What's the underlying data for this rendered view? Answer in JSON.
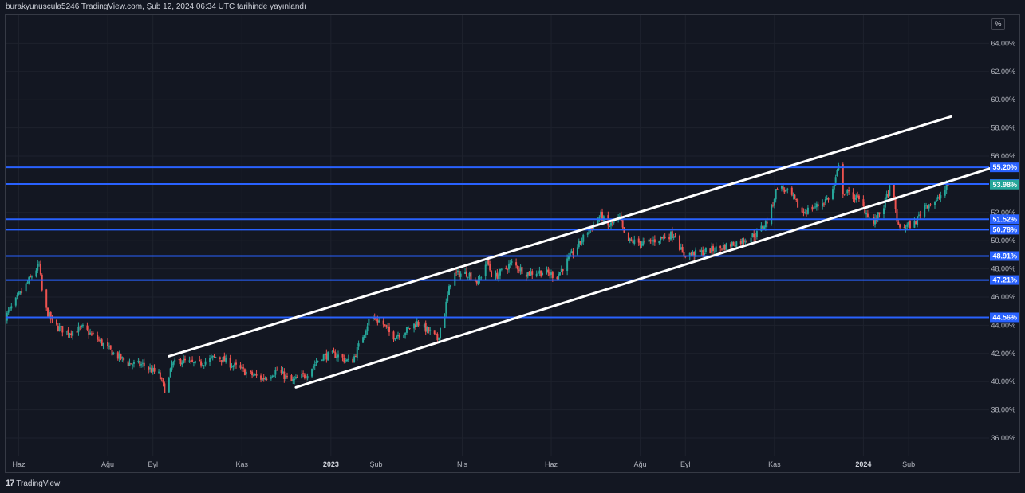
{
  "header": {
    "text": "burakyunuscula5246 TradingView.com, Şub 12, 2024 06:34 UTC tarihinde yayınlandı"
  },
  "footer": {
    "logo": "17",
    "brand": "TradingView"
  },
  "scale_badge": "%",
  "colors": {
    "background": "#131722",
    "grid": "#1e222d",
    "up": "#26a69a",
    "down": "#ef5350",
    "hline": "#2962ff",
    "hline_label_bg": "#2962ff",
    "current_label_bg": "#26a69a",
    "trendline": "#ffffff"
  },
  "chart_data": {
    "type": "candlestick",
    "title": "",
    "xlabel": "",
    "ylabel": "",
    "ylim": [
      34.7,
      66.0
    ],
    "y_unit": "%",
    "y_ticks": [
      "64.00%",
      "62.00%",
      "60.00%",
      "58.00%",
      "56.00%",
      "54.00%",
      "52.00%",
      "50.00%",
      "48.00%",
      "46.00%",
      "44.00%",
      "42.00%",
      "40.00%",
      "38.00%",
      "36.00%"
    ],
    "x_ticks": [
      {
        "label": "Haz",
        "date": "2022-06"
      },
      {
        "label": "Ağu",
        "date": "2022-08"
      },
      {
        "label": "Eyl",
        "date": "2022-09"
      },
      {
        "label": "Kas",
        "date": "2022-11"
      },
      {
        "label": "2023",
        "date": "2023-01",
        "bold": true
      },
      {
        "label": "Şub",
        "date": "2023-02"
      },
      {
        "label": "Nis",
        "date": "2023-04"
      },
      {
        "label": "Haz",
        "date": "2023-06"
      },
      {
        "label": "Ağu",
        "date": "2023-08"
      },
      {
        "label": "Eyl",
        "date": "2023-09"
      },
      {
        "label": "Kas",
        "date": "2023-11"
      },
      {
        "label": "2024",
        "date": "2024-01",
        "bold": true
      },
      {
        "label": "Şub",
        "date": "2024-02"
      }
    ],
    "price_path": [
      [
        "2022-05-23",
        44.6
      ],
      [
        "2022-06-10",
        47.5
      ],
      [
        "2022-06-15",
        48.3
      ],
      [
        "2022-06-18",
        45.5
      ],
      [
        "2022-06-25",
        44.0
      ],
      [
        "2022-07-05",
        43.5
      ],
      [
        "2022-07-15",
        43.8
      ],
      [
        "2022-07-25",
        43.0
      ],
      [
        "2022-08-05",
        42.0
      ],
      [
        "2022-08-15",
        41.3
      ],
      [
        "2022-08-25",
        41.2
      ],
      [
        "2022-09-05",
        40.5
      ],
      [
        "2022-09-10",
        39.2
      ],
      [
        "2022-09-14",
        41.2
      ],
      [
        "2022-09-20",
        41.5
      ],
      [
        "2022-10-01",
        41.2
      ],
      [
        "2022-10-15",
        41.8
      ],
      [
        "2022-10-25",
        41.2
      ],
      [
        "2022-11-05",
        40.6
      ],
      [
        "2022-11-15",
        40.2
      ],
      [
        "2022-11-25",
        40.8
      ],
      [
        "2022-12-05",
        40.0
      ],
      [
        "2022-12-15",
        40.5
      ],
      [
        "2022-12-25",
        41.8
      ],
      [
        "2023-01-05",
        41.9
      ],
      [
        "2023-01-15",
        41.3
      ],
      [
        "2023-01-20",
        42.5
      ],
      [
        "2023-01-28",
        44.6
      ],
      [
        "2023-02-05",
        44.2
      ],
      [
        "2023-02-12",
        43.2
      ],
      [
        "2023-02-20",
        43.5
      ],
      [
        "2023-03-01",
        44.2
      ],
      [
        "2023-03-10",
        43.5
      ],
      [
        "2023-03-15",
        43.0
      ],
      [
        "2023-03-20",
        45.0
      ],
      [
        "2023-03-25",
        47.6
      ],
      [
        "2023-04-05",
        47.7
      ],
      [
        "2023-04-12",
        47.0
      ],
      [
        "2023-04-18",
        48.6
      ],
      [
        "2023-04-22",
        47.3
      ],
      [
        "2023-05-05",
        48.4
      ],
      [
        "2023-05-15",
        47.7
      ],
      [
        "2023-05-25",
        47.8
      ],
      [
        "2023-06-05",
        47.5
      ],
      [
        "2023-06-15",
        49.0
      ],
      [
        "2023-06-25",
        50.5
      ],
      [
        "2023-07-05",
        51.8
      ],
      [
        "2023-07-10",
        51.0
      ],
      [
        "2023-07-18",
        51.6
      ],
      [
        "2023-07-22",
        50.0
      ],
      [
        "2023-08-05",
        49.8
      ],
      [
        "2023-08-15",
        50.2
      ],
      [
        "2023-08-25",
        50.5
      ],
      [
        "2023-08-30",
        49.0
      ],
      [
        "2023-09-10",
        49.1
      ],
      [
        "2023-09-25",
        49.5
      ],
      [
        "2023-10-10",
        50.0
      ],
      [
        "2023-10-20",
        50.5
      ],
      [
        "2023-10-28",
        51.5
      ],
      [
        "2023-11-03",
        53.9
      ],
      [
        "2023-11-12",
        53.3
      ],
      [
        "2023-11-20",
        52.0
      ],
      [
        "2023-12-01",
        52.5
      ],
      [
        "2023-12-10",
        53.2
      ],
      [
        "2023-12-15",
        55.2
      ],
      [
        "2023-12-18",
        53.5
      ],
      [
        "2023-12-28",
        53.0
      ],
      [
        "2024-01-03",
        52.0
      ],
      [
        "2024-01-08",
        51.2
      ],
      [
        "2024-01-15",
        52.5
      ],
      [
        "2024-01-20",
        54.0
      ],
      [
        "2024-01-25",
        50.9
      ],
      [
        "2024-02-05",
        51.2
      ],
      [
        "2024-02-12",
        52.5
      ],
      [
        "2024-02-20",
        52.8
      ],
      [
        "2024-02-28",
        53.9
      ]
    ],
    "levels": [
      {
        "value": 55.2,
        "label": "55.20%",
        "kind": "hline"
      },
      {
        "value": 54.02,
        "label": "54.02%",
        "kind": "hline"
      },
      {
        "value": 53.98,
        "label": "53.98%",
        "kind": "current"
      },
      {
        "value": 51.52,
        "label": "51.52%",
        "kind": "hline"
      },
      {
        "value": 50.78,
        "label": "50.78%",
        "kind": "hline"
      },
      {
        "value": 48.91,
        "label": "48.91%",
        "kind": "hline"
      },
      {
        "value": 47.21,
        "label": "47.21%",
        "kind": "hline"
      },
      {
        "value": 44.56,
        "label": "44.56%",
        "kind": "hline"
      }
    ],
    "trendlines": [
      {
        "name": "channel-upper",
        "x1": "2022-09-12",
        "y1": 41.8,
        "x2": "2024-03-01",
        "y2": 58.8
      },
      {
        "name": "channel-lower",
        "x1": "2022-12-08",
        "y1": 39.6,
        "x2": "2024-03-30",
        "y2": 55.2
      }
    ],
    "grid": true,
    "legend": "none"
  }
}
